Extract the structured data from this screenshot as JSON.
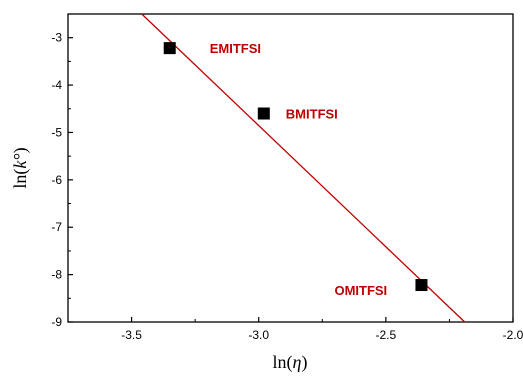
{
  "chart_data": {
    "type": "scatter",
    "title": "",
    "xlabel_main": "ln(",
    "xlabel_symbol": "η",
    "xlabel_close": ")",
    "ylabel_main": "ln(",
    "ylabel_symbol": "k°",
    "ylabel_close": ")",
    "xlim": [
      -3.75,
      -2.0
    ],
    "ylim": [
      -9,
      -2.5
    ],
    "x_ticks": [
      -3.5,
      -3.0,
      -2.5,
      -2.0
    ],
    "x_tick_labels": [
      "-3.5",
      "-3.0",
      "-2.5",
      "-2.0"
    ],
    "y_ticks": [
      -3,
      -4,
      -5,
      -6,
      -7,
      -8,
      -9
    ],
    "y_tick_labels": [
      "-3",
      "-4",
      "-5",
      "-6",
      "-7",
      "-8",
      "-9"
    ],
    "grid": false,
    "points": [
      {
        "label": "EMITFSI",
        "x": -3.35,
        "y": -3.22
      },
      {
        "label": "BMITFSI",
        "x": -2.98,
        "y": -4.6
      },
      {
        "label": "OMITFSI",
        "x": -2.36,
        "y": -8.22
      }
    ],
    "fit_line": {
      "x": [
        -3.46,
        -2.19
      ],
      "y": [
        -2.5,
        -9.0
      ]
    },
    "colors": {
      "marker": "#000000",
      "fit_line": "#c00000",
      "labels": "#c00000"
    }
  }
}
